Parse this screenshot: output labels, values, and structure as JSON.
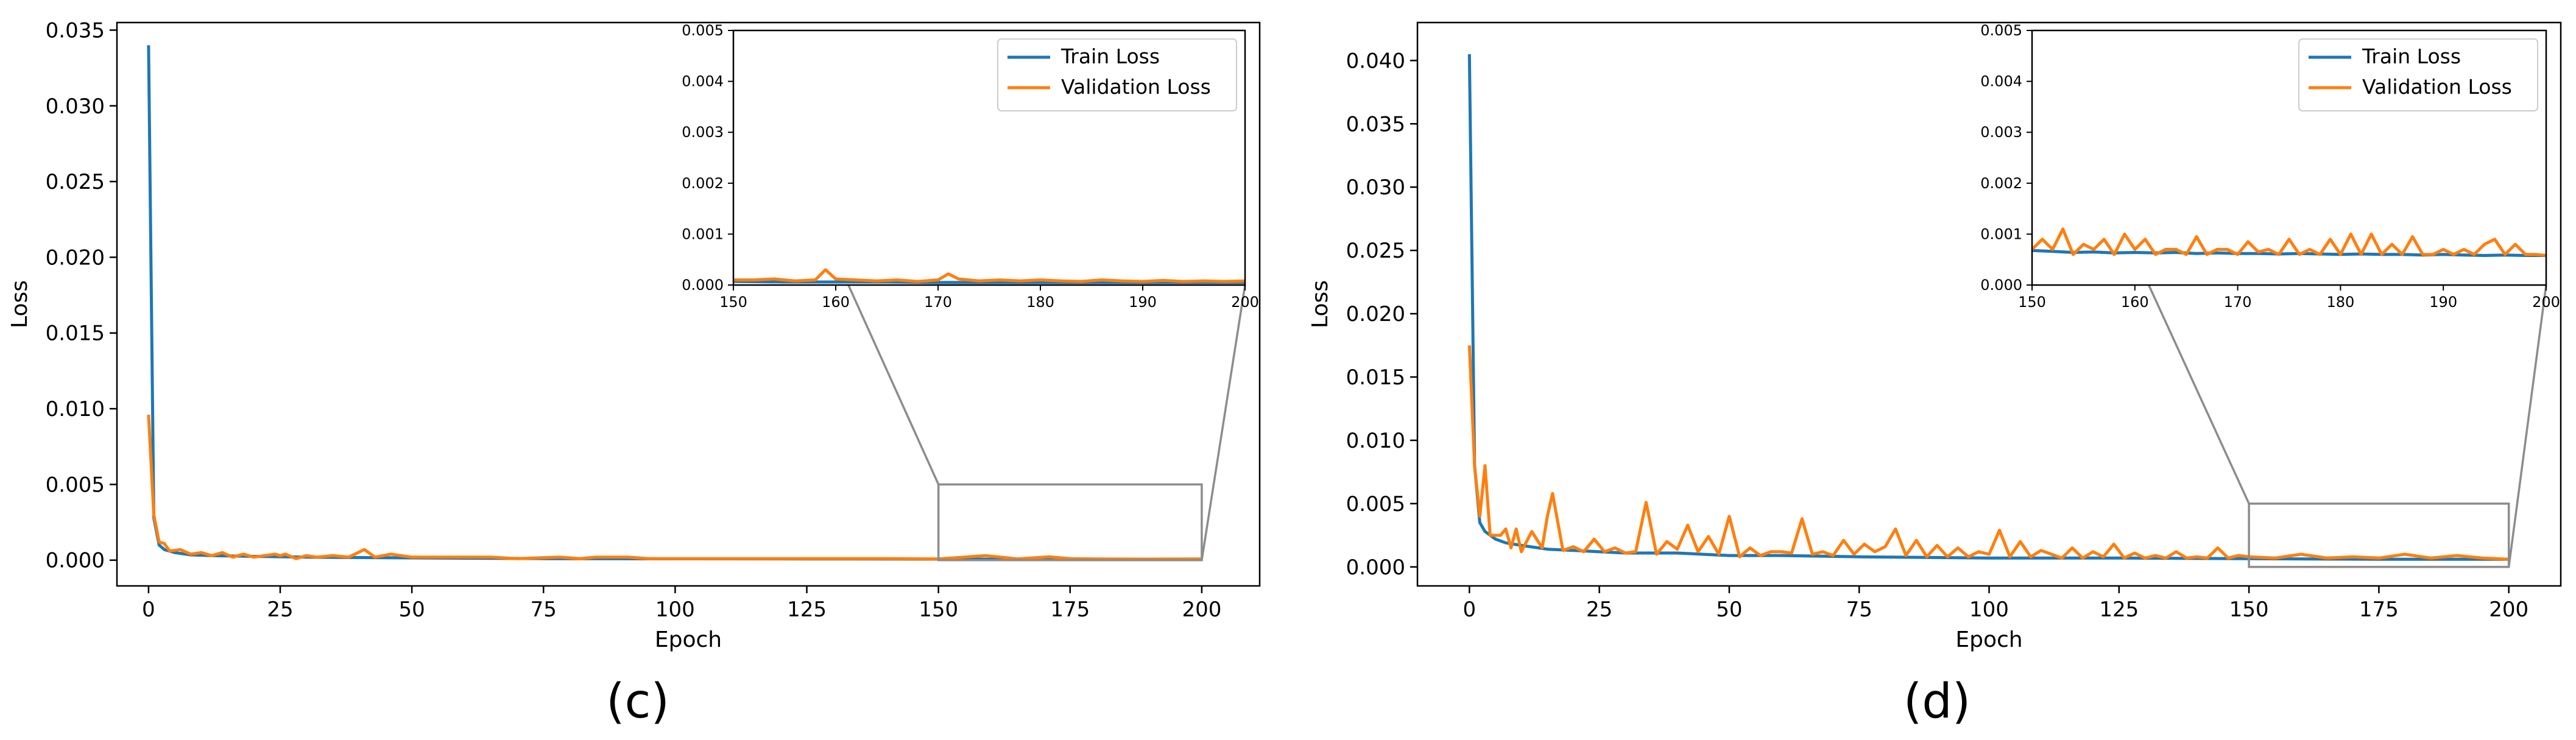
{
  "panels": [
    {
      "letter": "(c)",
      "xlabel": "Epoch",
      "ylabel": "Loss",
      "legend": [
        "Train Loss",
        "Validation Loss"
      ],
      "colors": {
        "train": "#1f77b4",
        "validation": "#ff7f0e",
        "zoom_box": "#8c8c8c"
      }
    },
    {
      "letter": "(d)",
      "xlabel": "Epoch",
      "ylabel": "Loss",
      "legend": [
        "Train Loss",
        "Validation Loss"
      ],
      "colors": {
        "train": "#1f77b4",
        "validation": "#ff7f0e",
        "zoom_box": "#8c8c8c"
      }
    }
  ],
  "chart_data": [
    {
      "type": "line",
      "panel_label": "(c)",
      "title": "",
      "xlabel": "Epoch",
      "ylabel": "Loss",
      "xlim": [
        -6,
        211
      ],
      "ylim": [
        -0.0017,
        0.0355
      ],
      "xticks": [
        0,
        25,
        50,
        75,
        100,
        125,
        150,
        175,
        200
      ],
      "yticks": [
        "0.000",
        "0.005",
        "0.010",
        "0.015",
        "0.020",
        "0.025",
        "0.030",
        "0.035"
      ],
      "legend_position": "inset top-right",
      "grid": false,
      "series": [
        {
          "name": "Train Loss",
          "color": "#1f77b4",
          "x": [
            0,
            1,
            2,
            3,
            5,
            8,
            12,
            20,
            30,
            50,
            75,
            100,
            125,
            150,
            175,
            200
          ],
          "y": [
            0.034,
            0.0028,
            0.001,
            0.0007,
            0.0005,
            0.00035,
            0.0003,
            0.00025,
            0.0002,
            0.00015,
            0.0001,
            9e-05,
            8e-05,
            7e-05,
            6e-05,
            6e-05
          ]
        },
        {
          "name": "Validation Loss",
          "color": "#ff7f0e",
          "x": [
            0,
            1,
            2,
            3,
            4,
            6,
            8,
            10,
            12,
            14,
            16,
            18,
            20,
            24,
            25,
            26,
            28,
            30,
            32,
            35,
            38,
            41,
            43,
            46,
            50,
            55,
            60,
            65,
            70,
            78,
            82,
            85,
            91,
            95,
            100,
            110,
            120,
            130,
            140,
            150,
            159,
            165,
            171,
            175,
            180,
            190,
            200
          ],
          "y": [
            0.0096,
            0.003,
            0.0012,
            0.0011,
            0.0006,
            0.0007,
            0.0004,
            0.0005,
            0.0003,
            0.0005,
            0.0002,
            0.0004,
            0.0002,
            0.0004,
            0.0003,
            0.0004,
            0.0001,
            0.0003,
            0.0002,
            0.0003,
            0.0002,
            0.0007,
            0.0002,
            0.0004,
            0.0002,
            0.0002,
            0.0002,
            0.0002,
            0.0001,
            0.0002,
            0.0001,
            0.0002,
            0.0002,
            0.0001,
            0.0001,
            0.0001,
            0.0001,
            0.0001,
            0.0001,
            8e-05,
            0.0003,
            8e-05,
            0.00022,
            0.0001,
            8e-05,
            7e-05,
            8e-05
          ]
        }
      ],
      "inset": {
        "xlim": [
          150,
          200
        ],
        "ylim": [
          0,
          0.005
        ],
        "xticks": [
          150,
          160,
          170,
          180,
          190,
          200
        ],
        "yticks": [
          "0.000",
          "0.001",
          "0.002",
          "0.003",
          "0.004",
          "0.005"
        ],
        "series": [
          {
            "name": "Train Loss",
            "color": "#1f77b4",
            "x": [
              150,
              155,
              160,
              165,
              170,
              175,
              180,
              185,
              190,
              195,
              200
            ],
            "y": [
              7e-05,
              6e-05,
              6e-05,
              6e-05,
              5e-05,
              5e-05,
              5e-05,
              5e-05,
              5e-05,
              5e-05,
              5e-05
            ]
          },
          {
            "name": "Validation Loss",
            "color": "#ff7f0e",
            "x": [
              150,
              152,
              154,
              156,
              158,
              159,
              160,
              162,
              164,
              166,
              168,
              170,
              171,
              172,
              174,
              176,
              178,
              180,
              182,
              184,
              186,
              188,
              190,
              192,
              194,
              196,
              198,
              200
            ],
            "y": [
              0.0001,
              0.0001,
              0.00012,
              8e-05,
              0.0001,
              0.0003,
              0.00012,
              0.0001,
              8e-05,
              0.0001,
              7e-05,
              0.0001,
              0.00022,
              0.00012,
              8e-05,
              0.0001,
              8e-05,
              0.0001,
              8e-05,
              7e-05,
              0.0001,
              8e-05,
              7e-05,
              9e-05,
              7e-05,
              8e-05,
              7e-05,
              8e-05
            ]
          }
        ]
      }
    },
    {
      "type": "line",
      "panel_label": "(d)",
      "title": "",
      "xlabel": "Epoch",
      "ylabel": "Loss",
      "xlim": [
        -10,
        210
      ],
      "ylim": [
        -0.0015,
        0.043
      ],
      "xticks": [
        0,
        25,
        50,
        75,
        100,
        125,
        150,
        175,
        200
      ],
      "yticks": [
        "0.000",
        "0.005",
        "0.010",
        "0.015",
        "0.020",
        "0.025",
        "0.030",
        "0.035",
        "0.040"
      ],
      "legend_position": "inset top-right",
      "grid": false,
      "series": [
        {
          "name": "Train Loss",
          "color": "#1f77b4",
          "x": [
            0,
            1,
            2,
            3,
            5,
            7,
            10,
            15,
            20,
            30,
            40,
            50,
            60,
            75,
            100,
            125,
            150,
            175,
            200
          ],
          "y": [
            0.0405,
            0.008,
            0.0035,
            0.0028,
            0.0022,
            0.0019,
            0.0017,
            0.0014,
            0.0013,
            0.0011,
            0.0011,
            0.0009,
            0.0009,
            0.0008,
            0.0007,
            0.0007,
            0.00065,
            0.0006,
            0.0006
          ]
        },
        {
          "name": "Validation Loss",
          "color": "#ff7f0e",
          "x": [
            0,
            1,
            2,
            3,
            4,
            6,
            7,
            8,
            9,
            10,
            12,
            14,
            15,
            16,
            18,
            20,
            22,
            24,
            26,
            28,
            30,
            32,
            34,
            36,
            38,
            40,
            42,
            44,
            46,
            48,
            50,
            52,
            54,
            56,
            58,
            60,
            62,
            64,
            66,
            68,
            70,
            72,
            74,
            76,
            78,
            80,
            82,
            84,
            86,
            88,
            90,
            92,
            94,
            96,
            98,
            100,
            102,
            104,
            106,
            108,
            110,
            112,
            114,
            116,
            118,
            120,
            122,
            124,
            126,
            128,
            130,
            132,
            134,
            136,
            138,
            140,
            142,
            144,
            146,
            148,
            150,
            155,
            160,
            165,
            170,
            175,
            180,
            185,
            190,
            195,
            200
          ],
          "y": [
            0.0175,
            0.008,
            0.004,
            0.008,
            0.0025,
            0.0025,
            0.003,
            0.0015,
            0.003,
            0.0012,
            0.0028,
            0.0015,
            0.004,
            0.0058,
            0.0013,
            0.0016,
            0.0012,
            0.0022,
            0.0012,
            0.0015,
            0.0011,
            0.0012,
            0.0051,
            0.001,
            0.002,
            0.0014,
            0.0033,
            0.0012,
            0.0024,
            0.001,
            0.004,
            0.0008,
            0.0015,
            0.0009,
            0.0012,
            0.0012,
            0.0011,
            0.0038,
            0.001,
            0.0012,
            0.0009,
            0.0021,
            0.001,
            0.0018,
            0.0012,
            0.0016,
            0.003,
            0.0009,
            0.0021,
            0.0008,
            0.0017,
            0.0008,
            0.0015,
            0.0008,
            0.0012,
            0.001,
            0.0029,
            0.0008,
            0.002,
            0.0008,
            0.0013,
            0.001,
            0.0007,
            0.0015,
            0.0007,
            0.0012,
            0.0008,
            0.0018,
            0.0007,
            0.0011,
            0.0007,
            0.0009,
            0.0007,
            0.0012,
            0.0007,
            0.0008,
            0.0007,
            0.0015,
            0.0007,
            0.0009,
            0.0008,
            0.0007,
            0.001,
            0.0007,
            0.0008,
            0.0007,
            0.001,
            0.0007,
            0.0009,
            0.0007,
            0.0006
          ]
        }
      ],
      "inset": {
        "xlim": [
          150,
          200
        ],
        "ylim": [
          0,
          0.005
        ],
        "xticks": [
          150,
          160,
          170,
          180,
          190,
          200
        ],
        "yticks": [
          "0.000",
          "0.001",
          "0.002",
          "0.003",
          "0.004",
          "0.005"
        ],
        "series": [
          {
            "name": "Train Loss",
            "color": "#1f77b4",
            "x": [
              150,
              152,
              154,
              156,
              158,
              160,
              162,
              164,
              166,
              168,
              170,
              172,
              174,
              176,
              178,
              180,
              182,
              184,
              186,
              188,
              190,
              192,
              194,
              196,
              198,
              200
            ],
            "y": [
              0.00068,
              0.00066,
              0.00064,
              0.00065,
              0.00063,
              0.00064,
              0.00063,
              0.00064,
              0.00062,
              0.00063,
              0.00062,
              0.00062,
              0.00061,
              0.00062,
              0.00061,
              0.0006,
              0.00061,
              0.0006,
              0.0006,
              0.00059,
              0.0006,
              0.00059,
              0.00058,
              0.00059,
              0.00058,
              0.00058
            ]
          },
          {
            "name": "Validation Loss",
            "color": "#ff7f0e",
            "x": [
              150,
              151,
              152,
              153,
              154,
              155,
              156,
              157,
              158,
              159,
              160,
              161,
              162,
              163,
              164,
              165,
              166,
              167,
              168,
              169,
              170,
              171,
              172,
              173,
              174,
              175,
              176,
              177,
              178,
              179,
              180,
              181,
              182,
              183,
              184,
              185,
              186,
              187,
              188,
              189,
              190,
              191,
              192,
              193,
              194,
              195,
              196,
              197,
              198,
              199,
              200
            ],
            "y": [
              0.0007,
              0.0009,
              0.0007,
              0.0011,
              0.0006,
              0.0008,
              0.0007,
              0.0009,
              0.0006,
              0.001,
              0.0007,
              0.0009,
              0.0006,
              0.0007,
              0.0007,
              0.0006,
              0.00095,
              0.0006,
              0.0007,
              0.0007,
              0.0006,
              0.00085,
              0.00065,
              0.0007,
              0.0006,
              0.0009,
              0.0006,
              0.0007,
              0.0006,
              0.0009,
              0.0006,
              0.001,
              0.0006,
              0.001,
              0.0006,
              0.0008,
              0.0006,
              0.00095,
              0.0006,
              0.0006,
              0.0007,
              0.0006,
              0.0007,
              0.0006,
              0.0008,
              0.0009,
              0.0006,
              0.0008,
              0.0006,
              0.0006,
              0.00058
            ]
          }
        ]
      }
    }
  ]
}
